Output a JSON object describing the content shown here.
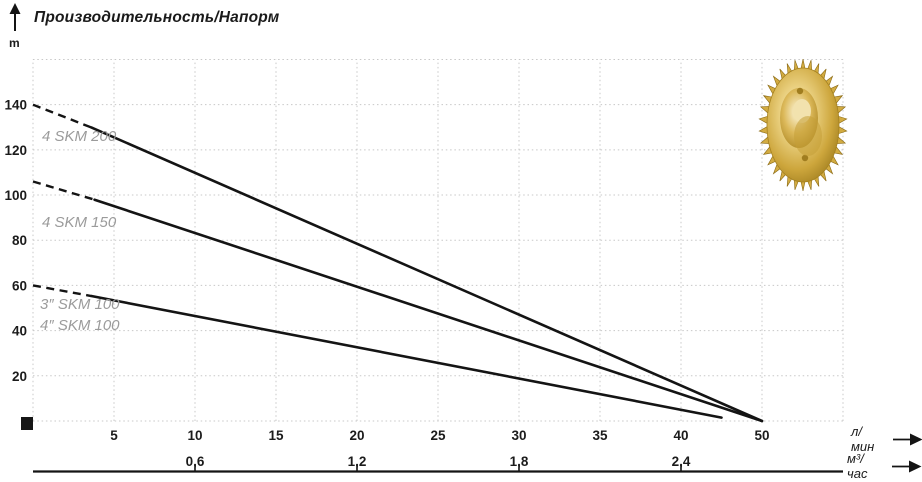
{
  "chart_data": {
    "type": "line",
    "title": "Производительность/Напорм",
    "y_axis": {
      "unit_label": "m",
      "ticks": [
        20,
        40,
        60,
        80,
        100,
        120,
        140
      ],
      "range": [
        0,
        160
      ],
      "grid_step": 20
    },
    "x_axis_primary": {
      "unit_label": "л/мин",
      "tick_values": [
        5,
        10,
        15,
        20,
        25,
        30,
        35,
        40,
        50
      ],
      "note": "ticks equally spaced; 45 omitted — the 50 tick sits one step after 40",
      "grid": true
    },
    "x_axis_secondary": {
      "unit_label": "м³/час",
      "tick_labels": [
        "0,6",
        "1,2",
        "1,8",
        "2,4"
      ],
      "positions_lmin": [
        10,
        20,
        30,
        40
      ]
    },
    "series": [
      {
        "name": "4 SKM 200",
        "points_lmin_m": [
          [
            0,
            140
          ],
          [
            50,
            0
          ]
        ],
        "dashed_until_lmin": 3.6
      },
      {
        "name": "4 SKM 150",
        "points_lmin_m": [
          [
            0,
            106
          ],
          [
            50,
            0
          ]
        ],
        "dashed_until_lmin": 3.8
      },
      {
        "name": "SKM 100",
        "labels": [
          "3″ SKM 100",
          "4″ SKM 100"
        ],
        "points_lmin_m": [
          [
            0,
            60
          ],
          [
            45,
            1.5
          ]
        ],
        "dashed_until_lmin": 3.6
      }
    ],
    "grid": true,
    "legend_position": "inline-left"
  },
  "colors": {
    "curve": "#141414",
    "grid": "#c8c8c8",
    "series_label": "#9b9b9b",
    "text": "#1b1b1b",
    "impeller_gold": "#d4af4e"
  }
}
